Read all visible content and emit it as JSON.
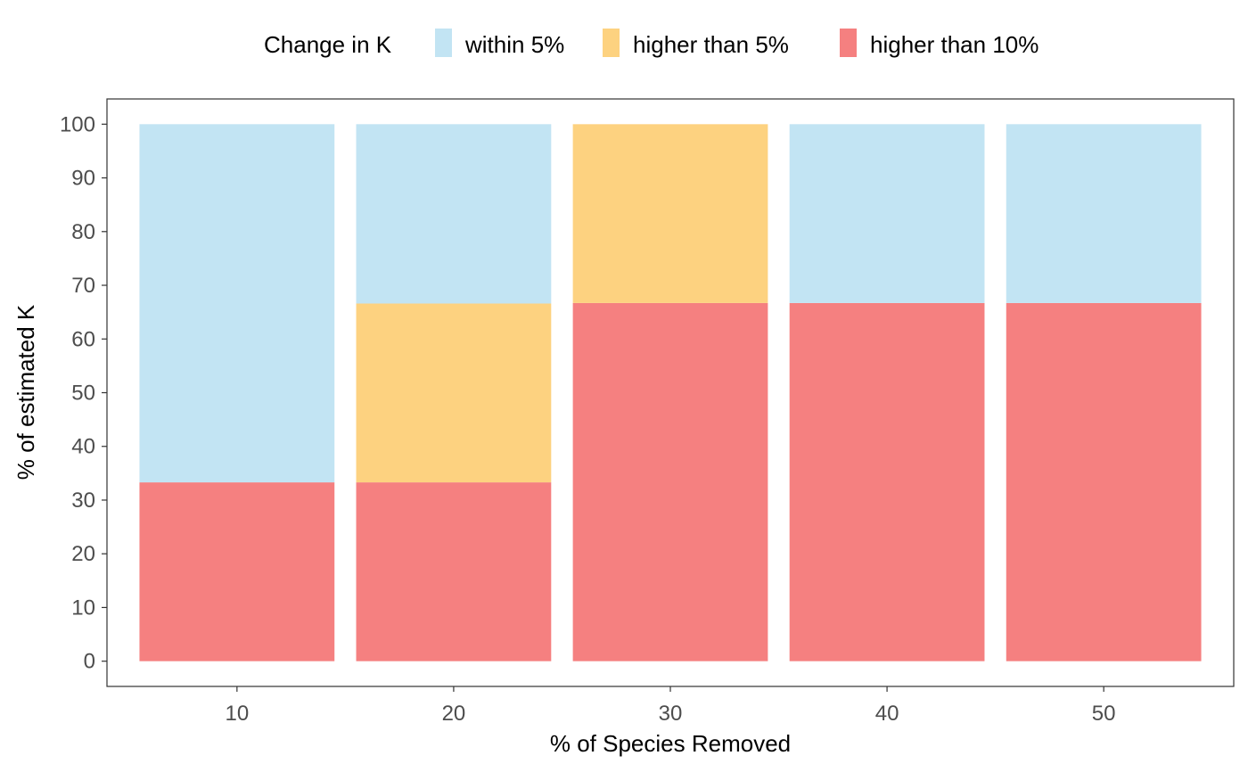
{
  "chart_data": {
    "type": "bar",
    "stacked": true,
    "categories": [
      "10",
      "20",
      "30",
      "40",
      "50"
    ],
    "series": [
      {
        "name": "higher than 10%",
        "color": "#F58080",
        "values": [
          33.3,
          33.3,
          66.7,
          66.7,
          66.7
        ]
      },
      {
        "name": "higher than 5%",
        "color": "#FDD280",
        "values": [
          0,
          33.3,
          33.3,
          0,
          0
        ]
      },
      {
        "name": "within 5%",
        "color": "#C2E4F3",
        "values": [
          66.7,
          33.4,
          0,
          33.3,
          33.3
        ]
      }
    ],
    "xlabel": "% of Species Removed",
    "ylabel": "% of estimated  K",
    "ylim": [
      -4.7,
      104.7
    ],
    "yticks": [
      0,
      10,
      20,
      30,
      40,
      50,
      60,
      70,
      80,
      90,
      100
    ],
    "grid": false,
    "legend": {
      "title": "Change in K",
      "position": "top",
      "entries": [
        {
          "label": "within 5%",
          "color": "#C2E4F3"
        },
        {
          "label": "higher than 5%",
          "color": "#FDD280"
        },
        {
          "label": "higher than 10%",
          "color": "#F58080"
        }
      ]
    }
  }
}
